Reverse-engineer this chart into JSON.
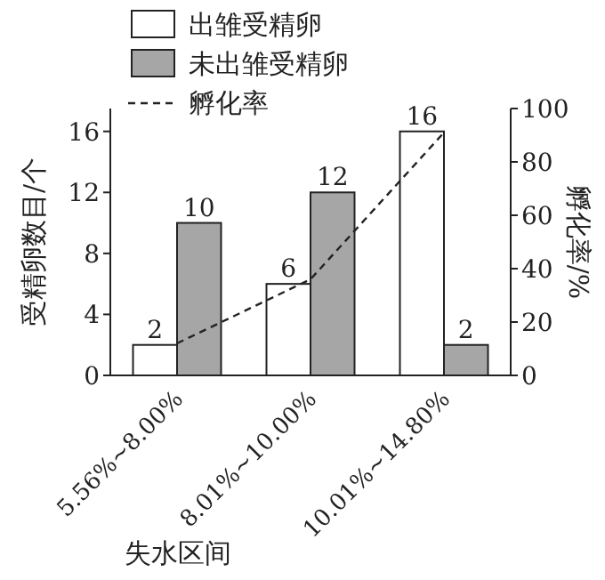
{
  "chart_data": {
    "type": "bar",
    "xlabel": "失水区间",
    "ylabel": "受精卵数目/个",
    "y2label": "孵化率/%",
    "categories": [
      "5.56%~8.00%",
      "8.01%~10.00%",
      "10.01%~14.80%"
    ],
    "series": [
      {
        "name": "出雏受精卵",
        "color": "#ffffff",
        "values": [
          2,
          6,
          16
        ],
        "value_labels": [
          "2",
          "6",
          "16"
        ]
      },
      {
        "name": "未出雏受精卵",
        "color": "#a6a6a6",
        "values": [
          10,
          12,
          2
        ],
        "value_labels": [
          "10",
          "12",
          "2"
        ]
      },
      {
        "name": "孵化率",
        "type": "line",
        "axis": "y2",
        "color": "#222222",
        "line_style": "dashed",
        "marker": "none",
        "values": [
          12,
          36,
          91
        ]
      }
    ],
    "ylim": [
      0,
      17.5
    ],
    "yticks": [
      0,
      4,
      8,
      12,
      16
    ],
    "y2lim": [
      0,
      100
    ],
    "y2ticks": [
      0,
      20,
      40,
      60,
      80,
      100
    ],
    "legend": "top",
    "grid": false
  }
}
